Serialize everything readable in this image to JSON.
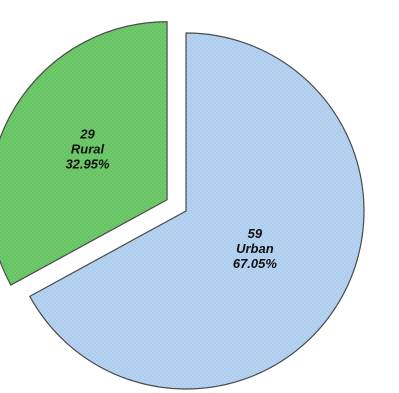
{
  "chart_data": {
    "type": "pie",
    "title": "",
    "slices": [
      {
        "key": "urban",
        "label": "Urban",
        "count": 59,
        "count_label": "59",
        "percent": 67.05,
        "percent_label": "67.05%",
        "color": "#b6d3f2",
        "pattern_color": "#8fb2d9",
        "exploded": false
      },
      {
        "key": "rural",
        "label": "Rural",
        "count": 29,
        "count_label": "29",
        "percent": 32.95,
        "percent_label": "32.95%",
        "color": "#6fca6b",
        "pattern_color": "#4ea64c",
        "exploded": true
      }
    ],
    "legend": "none",
    "start_angle": "top",
    "direction": "clockwise"
  }
}
